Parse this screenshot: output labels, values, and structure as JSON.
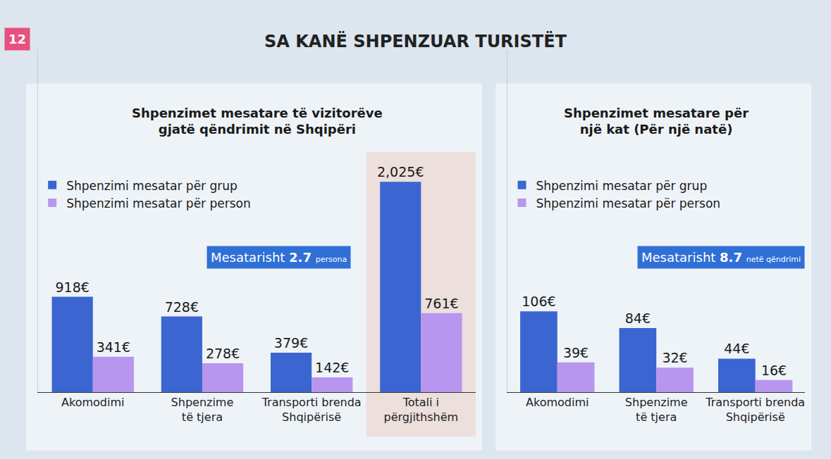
{
  "title": "SA KANË SHPENZUAR TURISTËT",
  "badge": "12",
  "chart_data": [
    {
      "type": "bar",
      "title": "Shpenzimet mesatare të vizitorëve gjatë qëndrimit në Shqipëri",
      "categories": [
        "Akomodimi",
        "Shpenzime të tjera",
        "Transporti brenda Shqipërisë",
        "Totali i përgjithshëm"
      ],
      "series": [
        {
          "name": "Shpenzimi mesatar për grup",
          "color": "#3b66d1",
          "values": [
            918,
            728,
            379,
            2025
          ],
          "value_labels": [
            "918€",
            "728€",
            "379€",
            "2,025€"
          ]
        },
        {
          "name": "Shpenzimi mesatar për person",
          "color": "#b896ef",
          "values": [
            341,
            278,
            142,
            761
          ],
          "value_labels": [
            "341€",
            "278€",
            "142€",
            "761€"
          ]
        }
      ],
      "ylim": [
        0,
        3300
      ],
      "grid": false,
      "data_labels": true,
      "tick_labels": "x",
      "legend": "top left",
      "annotations": [
        {
          "text": "Mesatarisht",
          "value": 2.7,
          "unit": "persona"
        }
      ]
    },
    {
      "type": "bar",
      "title": "Shpenzimet mesatare për një kat (Për një natë)",
      "categories": [
        "Akomodimi",
        "Shpenzime të tjera",
        "Transporti brenda Shqipërisë"
      ],
      "series": [
        {
          "name": "Shpenzimi mesatar për grup",
          "color": "#3b66d1",
          "values": [
            106,
            84,
            44
          ],
          "value_labels": [
            "106€",
            "84€",
            "44€"
          ]
        },
        {
          "name": "Shpenzimi mesatar për person",
          "color": "#b896ef",
          "values": [
            39,
            32,
            16
          ],
          "value_labels": [
            "39€",
            "32€",
            "16€"
          ]
        }
      ],
      "ylim": [
        0,
        450
      ],
      "grid": false,
      "data_labels": true,
      "tick_labels": "x",
      "legend": "top left",
      "annotations": [
        {
          "text": "Mesatarisht",
          "value": 8.7,
          "unit": "netë qëndrimi"
        }
      ]
    }
  ]
}
